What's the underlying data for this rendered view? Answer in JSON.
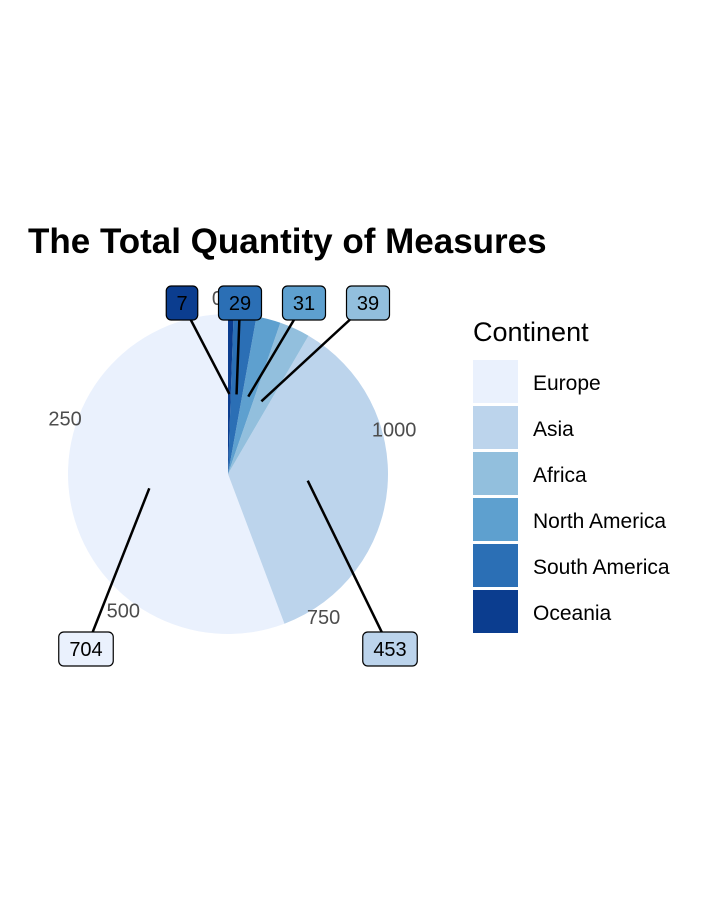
{
  "chart_data": {
    "type": "pie",
    "title": "The Total Quantity of Measures",
    "categories": [
      "Europe",
      "Asia",
      "Africa",
      "North America",
      "South America",
      "Oceania"
    ],
    "values": [
      704,
      453,
      39,
      31,
      29,
      7
    ],
    "colors": [
      "#eaf1fd",
      "#bcd4ec",
      "#92bfdd",
      "#5ea0cf",
      "#2b6fb5",
      "#0b3d8f"
    ],
    "axis_ticks": [
      {
        "label": "0",
        "value": 0
      },
      {
        "label": "250",
        "value": 250
      },
      {
        "label": "500",
        "value": 500
      },
      {
        "label": "750",
        "value": 750
      },
      {
        "label": "1000",
        "value": 1000
      }
    ],
    "legend_title": "Continent",
    "legend_position": "right",
    "data_labels": [
      "7",
      "29",
      "31",
      "39",
      "453",
      "704"
    ]
  }
}
